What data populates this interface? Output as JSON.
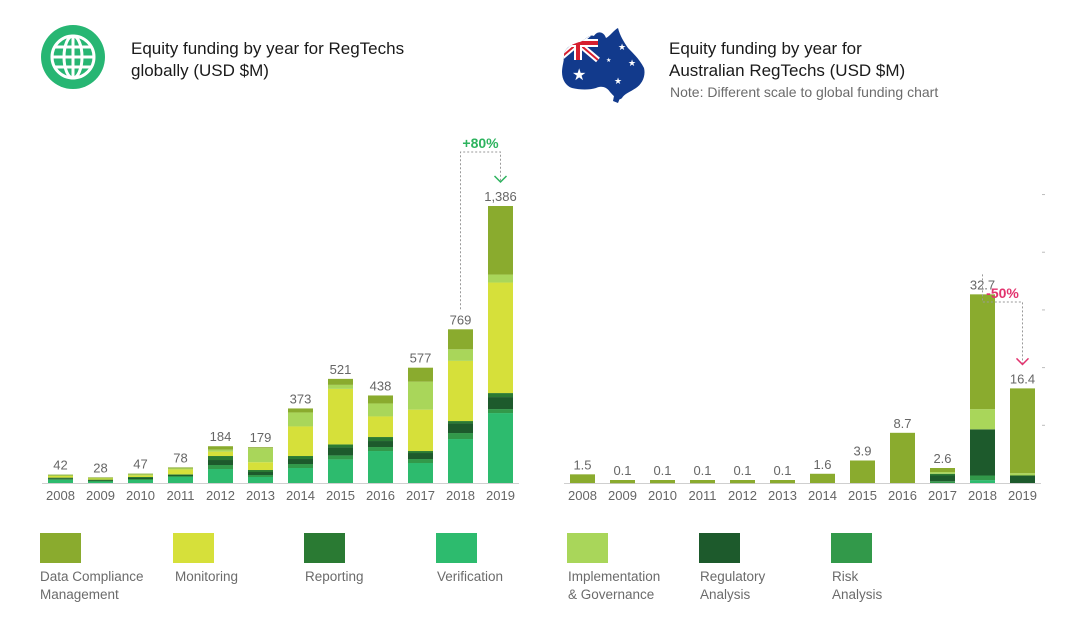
{
  "colors": {
    "data_compliance": "#8aab2e",
    "monitoring": "#d6e03a",
    "reporting": "#2a7a33",
    "verification": "#2dbb6e",
    "implementation": "#a9d65a",
    "regulatory": "#1d5a2c",
    "risk": "#32994a",
    "axis_text": "#666666",
    "increase": "#2db35e",
    "decrease": "#e2336e"
  },
  "header": {
    "global_title_line1": "Equity funding by year for RegTechs",
    "global_title_line2": "globally (USD $M)",
    "au_title_line1": "Equity funding by year for",
    "au_title_line2": "Australian RegTechs (USD $M)",
    "au_note": "Note: Different scale to global funding chart",
    "global_icon": "globe-icon",
    "au_icon": "australia-flag-map-icon"
  },
  "chart_data": [
    {
      "type": "bar",
      "stacked": true,
      "title": "Equity funding by year for RegTechs globally (USD $M)",
      "categories": [
        "2008",
        "2009",
        "2010",
        "2011",
        "2012",
        "2013",
        "2014",
        "2015",
        "2016",
        "2017",
        "2018",
        "2019"
      ],
      "totals": [
        42,
        28,
        47,
        78,
        184,
        179,
        373,
        521,
        438,
        577,
        769,
        1386
      ],
      "total_labels": [
        "42",
        "28",
        "47",
        "78",
        "184",
        "179",
        "373",
        "521",
        "438",
        "577",
        "769",
        "1,386"
      ],
      "series": [
        {
          "name": "Verification",
          "key": "verification",
          "values": [
            15,
            8,
            15,
            30,
            70,
            30,
            75,
            118,
            160,
            100,
            220,
            350
          ]
        },
        {
          "name": "Risk Analysis",
          "key": "risk",
          "values": [
            4,
            3,
            5,
            5,
            20,
            10,
            20,
            20,
            20,
            20,
            30,
            20
          ]
        },
        {
          "name": "Regulatory Analysis",
          "key": "regulatory",
          "values": [
            4,
            3,
            5,
            5,
            25,
            15,
            25,
            40,
            30,
            30,
            48,
            60
          ]
        },
        {
          "name": "Reporting",
          "key": "reporting",
          "values": [
            4,
            3,
            5,
            3,
            20,
            10,
            15,
            15,
            20,
            10,
            12,
            20
          ]
        },
        {
          "name": "Monitoring",
          "key": "monitoring",
          "values": [
            8,
            7,
            8,
            25,
            22,
            39,
            148,
            278,
            103,
            207,
            301,
            553
          ]
        },
        {
          "name": "Implementation & Governance",
          "key": "implementation",
          "values": [
            4,
            2,
            5,
            5,
            10,
            70,
            70,
            20,
            65,
            140,
            58,
            40
          ]
        },
        {
          "name": "Data Compliance Management",
          "key": "data_compliance",
          "values": [
            3,
            2,
            4,
            5,
            17,
            5,
            20,
            30,
            40,
            70,
            100,
            343
          ]
        }
      ],
      "ylim": [
        0,
        1386
      ],
      "annotation": {
        "text": "+80%",
        "from": "2018",
        "to": "2019"
      }
    },
    {
      "type": "bar",
      "stacked": true,
      "title": "Equity funding by year for Australian RegTechs (USD $M)",
      "categories": [
        "2008",
        "2009",
        "2010",
        "2011",
        "2012",
        "2013",
        "2014",
        "2015",
        "2016",
        "2017",
        "2018",
        "2019"
      ],
      "totals": [
        1.5,
        0.1,
        0.1,
        0.1,
        0.1,
        0.1,
        1.6,
        3.9,
        8.7,
        2.6,
        32.7,
        16.4
      ],
      "total_labels": [
        "1.5",
        "0.1",
        "0.1",
        "0.1",
        "0.1",
        "0.1",
        "1.6",
        "3.9",
        "8.7",
        "2.6",
        "32.7",
        "16.4"
      ],
      "series": [
        {
          "name": "Verification",
          "key": "verification",
          "values": [
            0,
            0,
            0,
            0,
            0,
            0,
            0,
            0,
            0,
            0,
            0.5,
            0
          ]
        },
        {
          "name": "Risk Analysis",
          "key": "risk",
          "values": [
            0,
            0,
            0,
            0,
            0,
            0,
            0,
            0,
            0,
            0.3,
            0.8,
            0
          ]
        },
        {
          "name": "Regulatory Analysis",
          "key": "regulatory",
          "values": [
            0,
            0,
            0,
            0,
            0,
            0,
            0,
            0,
            0,
            1.0,
            8.0,
            1.3
          ]
        },
        {
          "name": "Reporting",
          "key": "reporting",
          "values": [
            0,
            0,
            0,
            0,
            0,
            0,
            0,
            0,
            0,
            0.3,
            0,
            0
          ]
        },
        {
          "name": "Monitoring",
          "key": "monitoring",
          "values": [
            0,
            0,
            0,
            0,
            0,
            0,
            0,
            0,
            0,
            0,
            0,
            0
          ]
        },
        {
          "name": "Implementation & Governance",
          "key": "implementation",
          "values": [
            0,
            0,
            0,
            0,
            0,
            0,
            0,
            0,
            0,
            0.3,
            3.5,
            0.4
          ]
        },
        {
          "name": "Data Compliance Management",
          "key": "data_compliance",
          "values": [
            1.5,
            0.1,
            0.1,
            0.1,
            0.1,
            0.1,
            1.6,
            3.9,
            8.7,
            0.7,
            19.9,
            14.7
          ]
        }
      ],
      "ylim": [
        0,
        52
      ],
      "annotation": {
        "text": "-50%",
        "from": "2018",
        "to": "2019"
      }
    }
  ],
  "legend": [
    {
      "key": "data_compliance",
      "label": "Data Compliance\nManagement"
    },
    {
      "key": "monitoring",
      "label": "Monitoring"
    },
    {
      "key": "reporting",
      "label": "Reporting"
    },
    {
      "key": "verification",
      "label": "Verification"
    },
    {
      "key": "implementation",
      "label": "Implementation\n& Governance"
    },
    {
      "key": "regulatory",
      "label": "Regulatory\nAnalysis"
    },
    {
      "key": "risk",
      "label": "Risk\nAnalysis"
    }
  ]
}
